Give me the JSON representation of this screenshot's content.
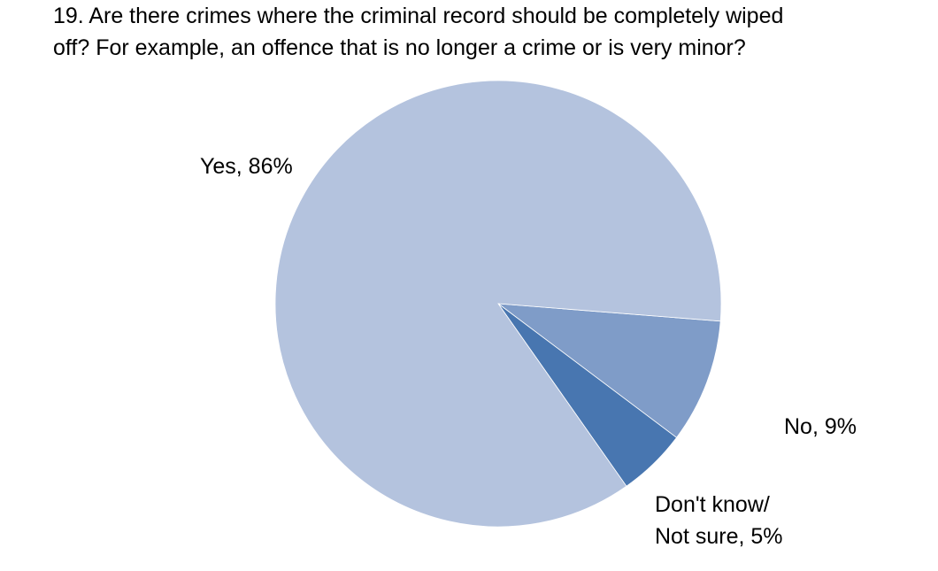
{
  "chart_data": {
    "type": "pie",
    "title": "19. Are there crimes where the criminal record should be completely wiped\noff? For example, an offence that is no longer a crime or is very minor?",
    "slices": [
      {
        "name": "Yes",
        "value": 86,
        "label": "Yes, 86%",
        "color": "#b4c3de"
      },
      {
        "name": "No",
        "value": 9,
        "label": "No, 9%",
        "color": "#7f9cc8"
      },
      {
        "name": "Don't know/ Not sure",
        "value": 5,
        "label": "Don't know/\nNot sure, 5%",
        "color": "#4876b0"
      }
    ],
    "legend": "none",
    "start_angle_deg": 94,
    "direction": "counterclockwise-from-yes"
  }
}
